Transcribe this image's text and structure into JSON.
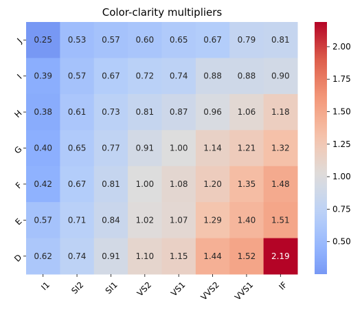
{
  "chart_data": {
    "type": "heatmap",
    "title": "Color-clarity multipliers",
    "x_categories": [
      "I1",
      "SI2",
      "SI1",
      "VS2",
      "VS1",
      "VVS2",
      "VVS1",
      "IF"
    ],
    "y_categories": [
      "J",
      "I",
      "H",
      "G",
      "F",
      "E",
      "D"
    ],
    "values": [
      [
        0.25,
        0.53,
        0.57,
        0.6,
        0.65,
        0.67,
        0.79,
        0.81
      ],
      [
        0.39,
        0.57,
        0.67,
        0.72,
        0.74,
        0.88,
        0.88,
        0.9
      ],
      [
        0.38,
        0.61,
        0.73,
        0.81,
        0.87,
        0.96,
        1.06,
        1.18
      ],
      [
        0.4,
        0.65,
        0.77,
        0.91,
        1.0,
        1.14,
        1.21,
        1.32
      ],
      [
        0.42,
        0.67,
        0.81,
        1.0,
        1.08,
        1.2,
        1.35,
        1.48
      ],
      [
        0.57,
        0.71,
        0.84,
        1.02,
        1.07,
        1.29,
        1.4,
        1.51
      ],
      [
        0.62,
        0.74,
        0.91,
        1.1,
        1.15,
        1.44,
        1.52,
        2.19
      ]
    ],
    "annotation_format": "0.00",
    "colormap": "coolwarm",
    "color_center": 1.0,
    "color_range": [
      0.25,
      2.19
    ],
    "colorbar_ticks": [
      0.5,
      0.75,
      1.0,
      1.25,
      1.5,
      1.75,
      2.0
    ],
    "xlabel": "",
    "ylabel": "",
    "x_tick_rotation": 45,
    "y_tick_rotation": 45
  }
}
